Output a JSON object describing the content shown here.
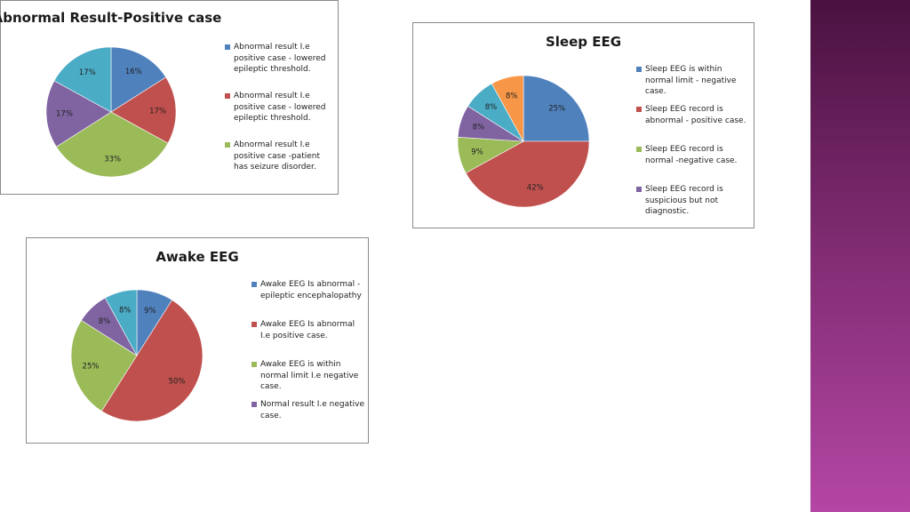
{
  "charts": [
    {
      "type": "pie",
      "title": "Abnormal Result-Positive case",
      "slices": [
        {
          "label": "Abnormal result I.e positive case - lowered epileptic threshold.",
          "value": 16,
          "color": "#4f81bd",
          "legend": true
        },
        {
          "label": "Abnormal result I.e positive case - lowered epileptic threshold.",
          "value": 17,
          "color": "#c0504d",
          "legend": true
        },
        {
          "label": "Abnormal result I.e positive case -patient has seizure disorder.",
          "value": 33,
          "color": "#9bbb59",
          "legend": true
        },
        {
          "label": "",
          "value": 17,
          "color": "#8064a2",
          "legend": false
        },
        {
          "label": "",
          "value": 17,
          "color": "#4bacc6",
          "legend": false
        }
      ]
    },
    {
      "type": "pie",
      "title": "Sleep EEG",
      "slices": [
        {
          "label": "Sleep EEG is within normal limit - negative case.",
          "value": 25,
          "color": "#4f81bd",
          "legend": true
        },
        {
          "label": "Sleep EEG record is abnormal - positive case.",
          "value": 42,
          "color": "#c0504d",
          "legend": true
        },
        {
          "label": "Sleep EEG record is normal -negative case.",
          "value": 9,
          "color": "#9bbb59",
          "legend": true
        },
        {
          "label": "Sleep EEG record is suspicious but not diagnostic.",
          "value": 8,
          "color": "#8064a2",
          "legend": true
        },
        {
          "label": "",
          "value": 8,
          "color": "#4bacc6",
          "legend": false
        },
        {
          "label": "",
          "value": 8,
          "color": "#f79646",
          "legend": false
        }
      ]
    },
    {
      "type": "pie",
      "title": "Awake EEG",
      "slices": [
        {
          "label": "Awake EEG Is abnormal - epileptic encephalopathy",
          "value": 9,
          "color": "#4f81bd",
          "legend": true
        },
        {
          "label": "Awake EEG Is abnormal I.e positive case.",
          "value": 50,
          "color": "#c0504d",
          "legend": true
        },
        {
          "label": "Awake EEG is within normal limit I.e negative case.",
          "value": 25,
          "color": "#9bbb59",
          "legend": true
        },
        {
          "label": "Normal result I.e negative case.",
          "value": 8,
          "color": "#8064a2",
          "legend": true
        },
        {
          "label": "",
          "value": 8,
          "color": "#4bacc6",
          "legend": false
        }
      ]
    }
  ]
}
